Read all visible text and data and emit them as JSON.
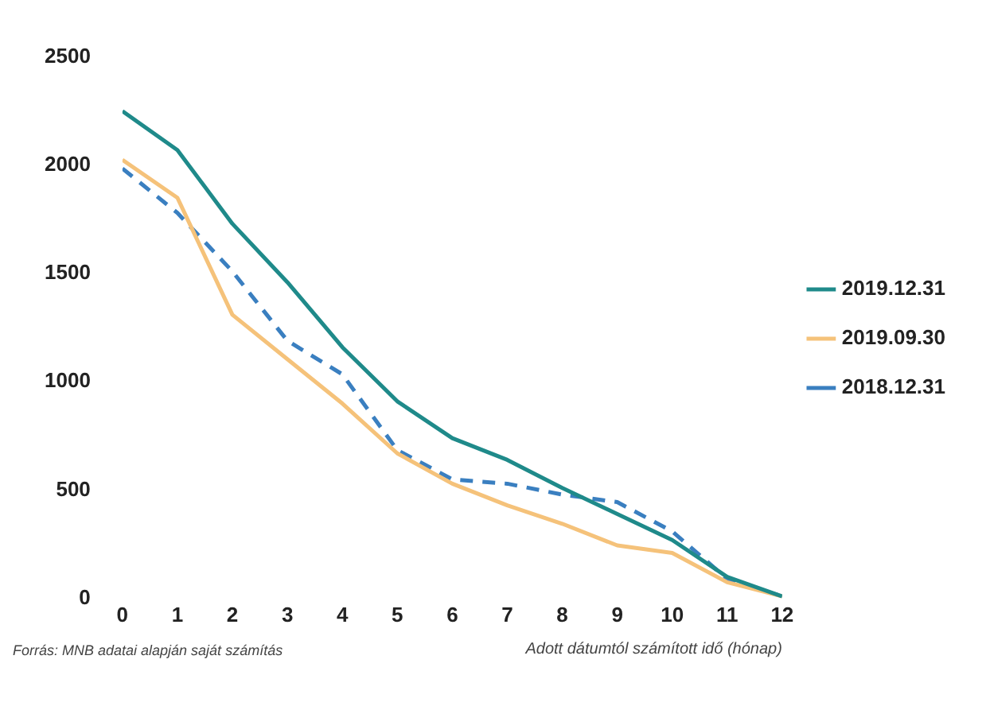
{
  "chart_data": {
    "type": "line",
    "xlabel": "Adott dátumtól számított idő (hónap)",
    "x": [
      0,
      1,
      2,
      3,
      4,
      5,
      6,
      7,
      8,
      9,
      10,
      11,
      12
    ],
    "xlim": [
      0,
      12
    ],
    "xticks": [
      0,
      1,
      2,
      3,
      4,
      5,
      6,
      7,
      8,
      9,
      10,
      11,
      12
    ],
    "ylim": [
      0,
      2500
    ],
    "yticks": [
      0,
      500,
      1000,
      1500,
      2000,
      2500
    ],
    "grid": false,
    "legend": "right",
    "marker": "none",
    "series": [
      {
        "name": "2019.12.31",
        "color": "#1f8a8a",
        "line_style": "solid",
        "values": [
          2250,
          2070,
          1730,
          1460,
          1160,
          910,
          740,
          640,
          510,
          390,
          270,
          100,
          10
        ]
      },
      {
        "name": "2019.09.30",
        "color": "#f5c27a",
        "line_style": "solid",
        "values": [
          2025,
          1850,
          1310,
          1105,
          900,
          670,
          530,
          430,
          345,
          245,
          210,
          75,
          10
        ]
      },
      {
        "name": "2018.12.31",
        "color": "#3a7fc0",
        "line_style": "dashed",
        "values": [
          1985,
          1780,
          1510,
          1190,
          1035,
          685,
          550,
          530,
          480,
          445,
          310,
          90,
          10
        ]
      }
    ],
    "annotations": [
      "Forrás: MNB adatai alapján saját számítás"
    ]
  }
}
